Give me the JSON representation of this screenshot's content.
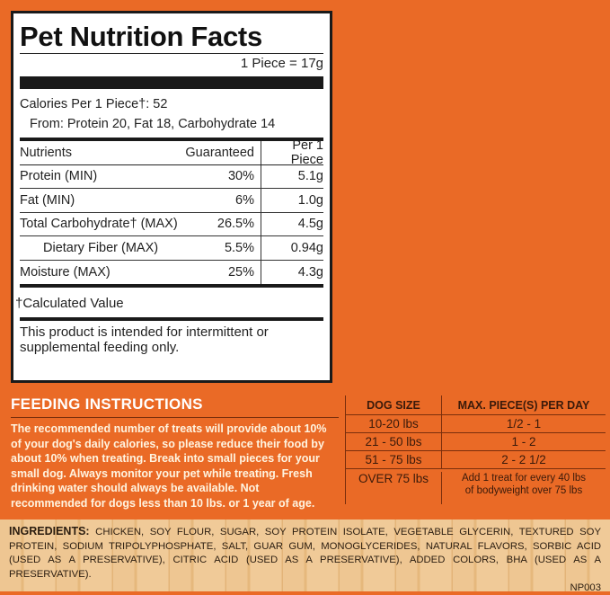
{
  "nutrition": {
    "title": "Pet Nutrition Facts",
    "serving": "1 Piece = 17g",
    "calories": "Calories Per 1 Piece†: 52",
    "from": "From: Protein 20, Fat 18, Carbohydrate 14",
    "headers": [
      "Nutrients",
      "Guaranteed",
      "Per 1 Piece"
    ],
    "rows": [
      {
        "name": "Protein (MIN)",
        "guaranteed": "30%",
        "per_piece": "5.1g"
      },
      {
        "name": "Fat (MIN)",
        "guaranteed": "6%",
        "per_piece": "1.0g"
      },
      {
        "name": "Total Carbohydrate† (MAX)",
        "guaranteed": "26.5%",
        "per_piece": "4.5g"
      },
      {
        "name": "Dietary Fiber (MAX)",
        "guaranteed": "5.5%",
        "per_piece": "0.94g"
      },
      {
        "name": "Moisture (MAX)",
        "guaranteed": "25%",
        "per_piece": "4.3g"
      }
    ],
    "footnote": "†Calculated Value",
    "note": "This product is intended for intermittent or supplemental feeding only."
  },
  "feeding": {
    "title": "FEEDING INSTRUCTIONS",
    "text": "The recommended number of treats will provide about 10% of your dog's daily calories, so please reduce their food by about 10% when treating. Break into small pieces for your small dog. Always monitor your pet while treating. Fresh drinking water should always be available. Not recommended for dogs less than 10 lbs. or 1 year of age.",
    "headers": [
      "DOG SIZE",
      "MAX. PIECE(S) PER DAY"
    ],
    "rows": [
      {
        "size": "10-20 lbs",
        "pieces": "1/2 - 1"
      },
      {
        "size": "21 - 50 lbs",
        "pieces": "1 - 2"
      },
      {
        "size": "51 - 75 lbs",
        "pieces": "2 - 2 1/2"
      },
      {
        "size": "OVER 75 lbs",
        "pieces": "Add 1 treat for every 40 lbs of bodyweight over 75 lbs"
      }
    ]
  },
  "ingredients": {
    "label": "INGREDIENTS:",
    "text": "CHICKEN, SOY FLOUR, SUGAR, SOY PROTEIN ISOLATE, VEGETABLE GLYCERIN, TEXTURED SOY PROTEIN, SODIUM TRIPOLYPHOSPHATE, SALT, GUAR GUM, MONOGLYCERIDES, NATURAL FLAVORS, SORBIC ACID (USED AS A PRESERVATIVE), CITRIC ACID (USED AS A PRESERVATIVE), ADDED COLORS, BHA (USED AS A PRESERVATIVE).",
    "code": "NP003"
  },
  "colors": {
    "background": "#ea6a26",
    "label_bg": "#ffffff",
    "wood": "#eec692"
  }
}
